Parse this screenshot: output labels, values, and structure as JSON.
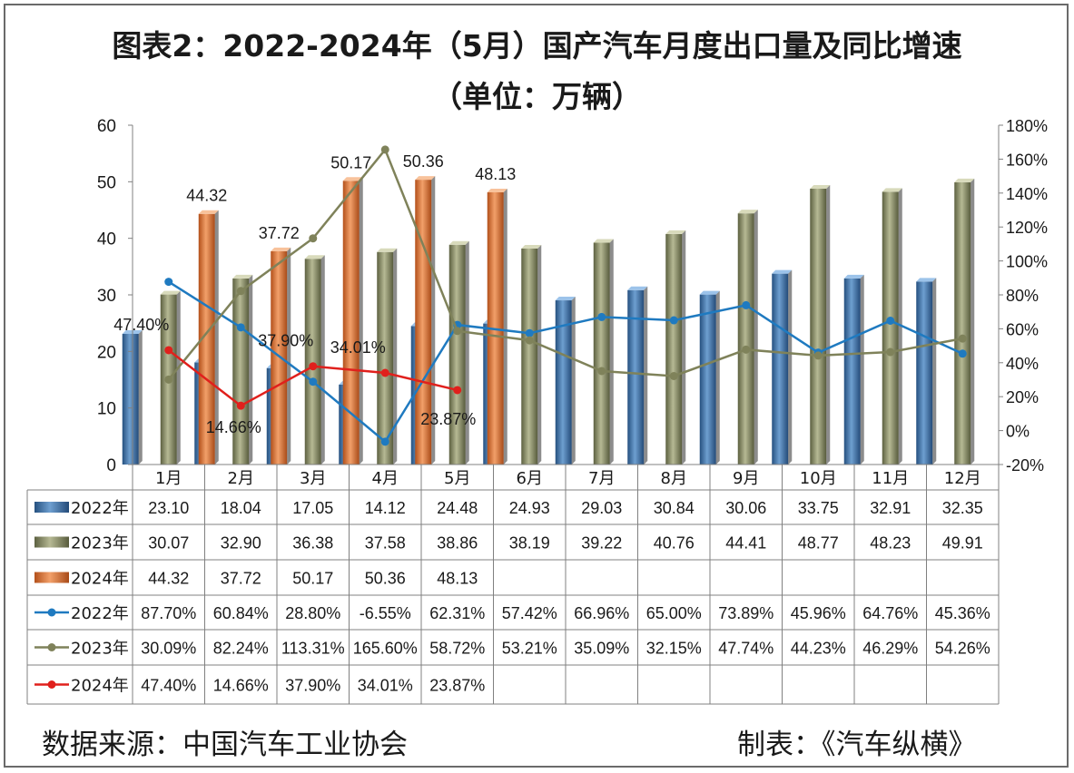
{
  "title_line1": "图表2：2022-2024年（5月）国产汽车月度出口量及同比增速",
  "title_line2": "（单位：万辆）",
  "footer_source": "数据来源：中国汽车工业协会",
  "footer_maker": "制表：《汽车纵横》",
  "chart_data": {
    "type": "bar",
    "categories": [
      "1月",
      "2月",
      "3月",
      "4月",
      "5月",
      "6月",
      "7月",
      "8月",
      "9月",
      "10月",
      "11月",
      "12月"
    ],
    "y_left": {
      "ticks": [
        "0",
        "10",
        "20",
        "30",
        "40",
        "50",
        "60"
      ],
      "lim": [
        0,
        60
      ]
    },
    "y_right": {
      "ticks": [
        "-20%",
        "0%",
        "20%",
        "40%",
        "60%",
        "80%",
        "100%",
        "120%",
        "140%",
        "160%",
        "180%"
      ],
      "lim": [
        -20,
        180
      ]
    },
    "bar_series": [
      {
        "name": "2022年",
        "color": "#3f72a8",
        "values": [
          23.1,
          18.04,
          17.05,
          14.12,
          24.48,
          24.93,
          29.03,
          30.84,
          30.06,
          33.75,
          32.91,
          32.35
        ]
      },
      {
        "name": "2023年",
        "color": "#8a8f62",
        "values": [
          30.07,
          32.9,
          36.38,
          37.58,
          38.86,
          38.19,
          39.22,
          40.76,
          44.41,
          48.77,
          48.23,
          49.91
        ]
      },
      {
        "name": "2024年",
        "color": "#e07430",
        "values": [
          44.32,
          37.72,
          50.17,
          50.36,
          48.13
        ]
      }
    ],
    "line_series": [
      {
        "name": "2022年",
        "color": "#1f7ac0",
        "values": [
          87.7,
          60.84,
          28.8,
          -6.55,
          62.31,
          57.42,
          66.96,
          65.0,
          73.89,
          45.96,
          64.76,
          45.36
        ]
      },
      {
        "name": "2023年",
        "color": "#7f825a",
        "values": [
          30.09,
          82.24,
          113.31,
          165.6,
          58.72,
          53.21,
          35.09,
          32.15,
          47.74,
          44.23,
          46.29,
          54.26
        ]
      },
      {
        "name": "2024年",
        "color": "#e0201c",
        "values": [
          47.4,
          14.66,
          37.9,
          34.01,
          23.87
        ]
      }
    ],
    "bar_data_labels": [
      "44.32",
      "37.72",
      "50.17",
      "50.36",
      "48.13"
    ],
    "line_data_labels": [
      "47.40%",
      "14.66%",
      "37.90%",
      "34.01%",
      "23.87%"
    ],
    "table": {
      "rows": [
        [
          "23.10",
          "18.04",
          "17.05",
          "14.12",
          "24.48",
          "24.93",
          "29.03",
          "30.84",
          "30.06",
          "33.75",
          "32.91",
          "32.35"
        ],
        [
          "30.07",
          "32.90",
          "36.38",
          "37.58",
          "38.86",
          "38.19",
          "39.22",
          "40.76",
          "44.41",
          "48.77",
          "48.23",
          "49.91"
        ],
        [
          "44.32",
          "37.72",
          "50.17",
          "50.36",
          "48.13",
          "",
          "",
          "",
          "",
          "",
          "",
          ""
        ],
        [
          "87.70%",
          "60.84%",
          "28.80%",
          "-6.55%",
          "62.31%",
          "57.42%",
          "66.96%",
          "65.00%",
          "73.89%",
          "45.96%",
          "64.76%",
          "45.36%"
        ],
        [
          "30.09%",
          "82.24%",
          "113.31%",
          "165.60%",
          "58.72%",
          "53.21%",
          "35.09%",
          "32.15%",
          "47.74%",
          "44.23%",
          "46.29%",
          "54.26%"
        ],
        [
          "47.40%",
          "14.66%",
          "37.90%",
          "34.01%",
          "23.87%",
          "",
          "",
          "",
          "",
          "",
          "",
          ""
        ]
      ]
    }
  }
}
